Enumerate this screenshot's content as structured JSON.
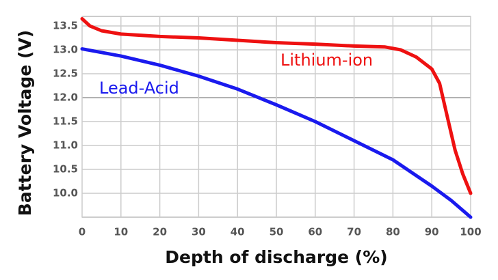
{
  "chart_data": {
    "type": "line",
    "x_label": "Depth of discharge (%)",
    "y_label": "Battery Voltage (V)",
    "xlim": [
      0,
      100
    ],
    "ylim": [
      9.5,
      13.7
    ],
    "xticks": [
      0,
      10,
      20,
      30,
      40,
      50,
      60,
      70,
      80,
      90,
      100
    ],
    "yticks": [
      {
        "value": 10,
        "label": "10.0"
      },
      {
        "value": 10.5,
        "label": "10.5"
      },
      {
        "value": 11,
        "label": "11.0"
      },
      {
        "value": 11.5,
        "label": "11.5"
      },
      {
        "value": 12,
        "label": "12.0"
      },
      {
        "value": 12.5,
        "label": "12.5"
      },
      {
        "value": 13,
        "label": "13.0"
      },
      {
        "value": 13.5,
        "label": "13.5"
      }
    ],
    "grid": true,
    "series": [
      {
        "name": "Lithium-ion",
        "color": "#ee1111",
        "x": [
          0,
          2,
          5,
          10,
          20,
          30,
          40,
          50,
          60,
          70,
          78,
          82,
          86,
          90,
          92,
          94,
          96,
          98,
          100
        ],
        "values": [
          13.65,
          13.5,
          13.4,
          13.33,
          13.28,
          13.25,
          13.2,
          13.15,
          13.12,
          13.08,
          13.06,
          13.0,
          12.85,
          12.6,
          12.3,
          11.6,
          10.9,
          10.4,
          10.0
        ]
      },
      {
        "name": "Lead-Acid",
        "color": "#1a1aee",
        "x": [
          0,
          10,
          20,
          30,
          40,
          50,
          60,
          70,
          80,
          90,
          95,
          100
        ],
        "values": [
          13.02,
          12.87,
          12.68,
          12.45,
          12.18,
          11.85,
          11.5,
          11.1,
          10.7,
          10.15,
          9.85,
          9.5
        ]
      }
    ]
  }
}
